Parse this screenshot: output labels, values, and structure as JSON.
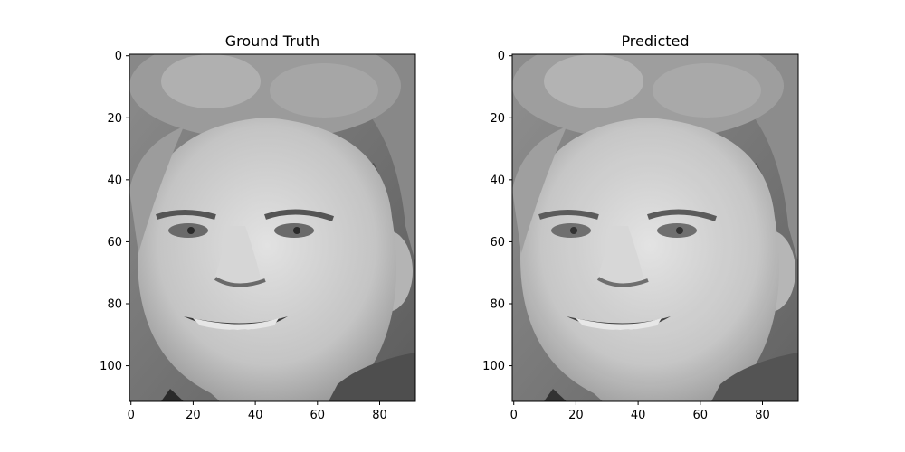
{
  "panels": [
    {
      "title": "Ground Truth",
      "image_alt": "grayscale face photo",
      "x_ticks": [
        "0",
        "20",
        "40",
        "60",
        "80"
      ],
      "y_ticks": [
        "0",
        "20",
        "40",
        "60",
        "80",
        "100"
      ]
    },
    {
      "title": "Predicted",
      "image_alt": "grayscale face photo",
      "x_ticks": [
        "0",
        "20",
        "40",
        "60",
        "80"
      ],
      "y_ticks": [
        "0",
        "20",
        "40",
        "60",
        "80",
        "100"
      ]
    }
  ],
  "colors": {
    "background": "#ffffff",
    "skin": "#c8c8c8",
    "hair": "#8a8a8a",
    "backdrop": "#7a7a7a",
    "shadow": "#5a5a5a"
  }
}
